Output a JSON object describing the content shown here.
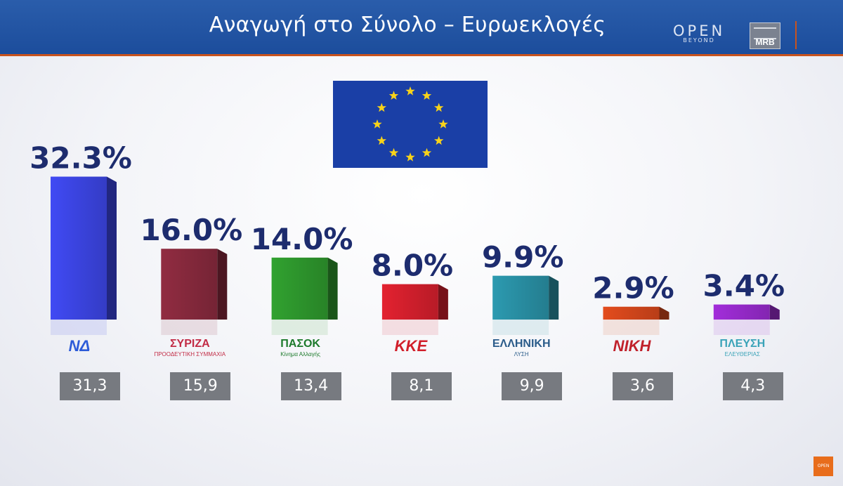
{
  "header": {
    "title": "Αναγωγή στο Σύνολο – Ευρωεκλογές",
    "open_word": "OPEN",
    "open_sub": "BEYOND",
    "mrb": "MRB",
    "corner": "OPEN"
  },
  "chart_data": {
    "type": "bar",
    "title": "Αναγωγή στο Σύνολο – Ευρωεκλογές",
    "categories": [
      "ΝΔ",
      "ΣΥΡΙΖΑ",
      "ΠΑΣΟΚ",
      "ΚΚΕ",
      "ΕΛΛΗΝΙΚΗ ΛΥΣΗ",
      "ΝΙΚΗ",
      "ΠΛΕΥΣΗ ΕΛΕΥΘΕΡΙΑΣ"
    ],
    "series": [
      {
        "values": [
          32.3,
          16.0,
          14.0,
          8.0,
          9.9,
          2.9,
          3.4
        ],
        "labels": [
          "32.3%",
          "16.0%",
          "14.0%",
          "8.0%",
          "9.9%",
          "2.9%",
          "3.4%"
        ]
      },
      {
        "values": [
          31.3,
          15.9,
          13.4,
          8.1,
          9.9,
          3.6,
          4.3
        ],
        "labels": [
          "31,3",
          "15,9",
          "13,4",
          "8,1",
          "9,9",
          "3,6",
          "4,3"
        ]
      }
    ],
    "colors": [
      "#3d46e8",
      "#8a2a3e",
      "#2f9a2e",
      "#d8202e",
      "#2a93a8",
      "#d8481c",
      "#9a2bd0"
    ],
    "party_logos": [
      {
        "text": "ΝΔ",
        "color": "#2c5bd8"
      },
      {
        "text": "ΣΥΡΙΖΑ",
        "sub": "ΠΡΟΟΔΕΥΤΙΚΗ ΣΥΜΜΑΧΙΑ",
        "color": "#c22b45"
      },
      {
        "text": "ΠΑΣΟΚ",
        "sub": "Κίνημα Αλλαγής",
        "color": "#1d7a2c"
      },
      {
        "text": "ΚΚΕ",
        "color": "#d11f2a"
      },
      {
        "text": "ΕΛΛΗΝΙΚΗ",
        "sub": "ΛΥΣΗ",
        "color": "#2b5c8a"
      },
      {
        "text": "ΝΙΚΗ",
        "color": "#c0212b"
      },
      {
        "text": "ΠΛΕΥΣΗ",
        "sub": "ΕΛΕΥΘΕΡΙΑΣ",
        "color": "#3aa3b8"
      }
    ],
    "ylim": [
      0,
      35
    ],
    "grid": false,
    "legend": "none"
  }
}
